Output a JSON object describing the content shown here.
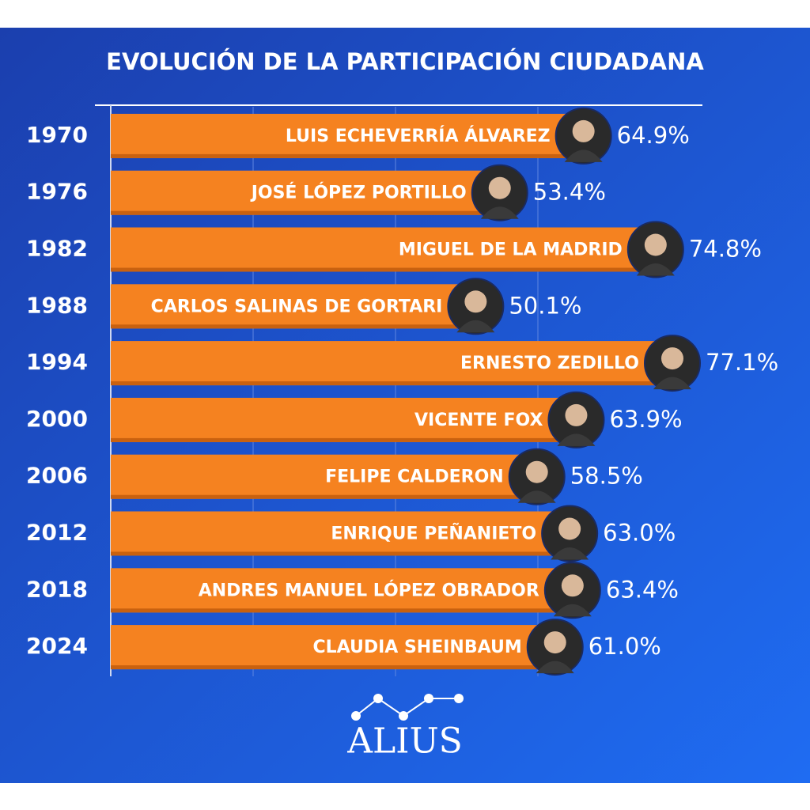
{
  "chart_data": {
    "type": "bar",
    "orientation": "horizontal",
    "title": "EVOLUCIÓN DE LA PARTICIPACIÓN CIUDADANA",
    "categories": [
      "1970",
      "1976",
      "1982",
      "1988",
      "1994",
      "2000",
      "2006",
      "2012",
      "2018",
      "2024"
    ],
    "labels": [
      "LUIS ECHEVERRÍA ÁLVAREZ",
      "JOSÉ LÓPEZ PORTILLO",
      "MIGUEL DE LA MADRID",
      "CARLOS SALINAS DE GORTARI",
      "ERNESTO ZEDILLO",
      "VICENTE FOX",
      "FELIPE CALDERON",
      "ENRIQUE PEÑANIETO",
      "ANDRES MANUEL LÓPEZ OBRADOR",
      "CLAUDIA SHEINBAUM"
    ],
    "values": [
      64.9,
      53.4,
      74.8,
      50.1,
      77.1,
      63.9,
      58.5,
      63.0,
      63.4,
      61.0
    ],
    "value_labels": [
      "64.9%",
      "53.4%",
      "74.8%",
      "50.1%",
      "77.1%",
      "63.9%",
      "58.5%",
      "63.0%",
      "63.4%",
      "61.0%"
    ],
    "color": "#f58220"
  },
  "logo": "ALIUS"
}
